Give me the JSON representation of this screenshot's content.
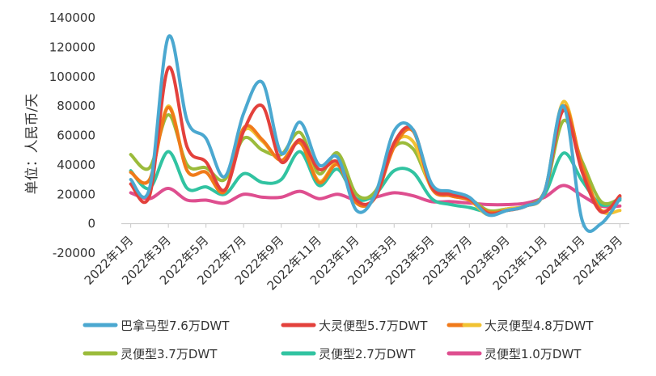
{
  "chart_data": {
    "type": "line",
    "title": "",
    "xlabel": "",
    "ylabel": "单位：人民币/天",
    "ylim": [
      -20000,
      140000
    ],
    "yticks": [
      -20000,
      0,
      20000,
      40000,
      60000,
      80000,
      100000,
      120000,
      140000
    ],
    "ytick_labels": [
      "-20000",
      "0",
      "20000",
      "40000",
      "60000",
      "80000",
      "100000",
      "120000",
      "140000"
    ],
    "x": [
      "2022-01",
      "2022-02",
      "2022-03",
      "2022-04",
      "2022-05",
      "2022-06",
      "2022-07",
      "2022-08",
      "2022-09",
      "2022-10",
      "2022-11",
      "2022-12",
      "2023-01",
      "2023-02",
      "2023-03",
      "2023-04",
      "2023-05",
      "2023-06",
      "2023-07",
      "2023-08",
      "2023-09",
      "2023-10",
      "2023-11",
      "2023-12",
      "2024-01",
      "2024-02",
      "2024-03"
    ],
    "x_tick_labels": [
      "2022年1月",
      "2022年3月",
      "2022年5月",
      "2022年7月",
      "2022年9月",
      "2022年11月",
      "2023年1月",
      "2023年3月",
      "2023年5月",
      "2023年7月",
      "2023年9月",
      "2023年11月",
      "2024年1月",
      "2024年3月"
    ],
    "grid": false,
    "legend_position": "bottom",
    "series": [
      {
        "name": "巴拿马型7.6万DWT",
        "color": "#4BA8D0",
        "values": [
          30000,
          24000,
          127000,
          70000,
          58000,
          32000,
          75000,
          96000,
          48000,
          69000,
          40000,
          45000,
          9000,
          20000,
          63000,
          64000,
          27000,
          22000,
          18000,
          6000,
          9000,
          12000,
          22000,
          80000,
          2000,
          0,
          17000
        ]
      },
      {
        "name": "大灵便型5.7万DWT",
        "color": "#E3413C",
        "values": [
          27000,
          19000,
          106000,
          52000,
          42000,
          23000,
          63000,
          80000,
          42000,
          57000,
          37000,
          42000,
          16000,
          18000,
          55000,
          64000,
          25000,
          20000,
          17000,
          7000,
          9000,
          12000,
          22000,
          77000,
          35000,
          8000,
          19000
        ]
      },
      {
        "name": "大灵便型4.8万DWT",
        "color": "#F07A1A",
        "values": [
          35000,
          30000,
          79000,
          36000,
          35000,
          22000,
          65000,
          57000,
          43000,
          55000,
          28000,
          40000,
          14000,
          18000,
          52000,
          63000,
          24000,
          19000,
          16000,
          8000,
          9000,
          12000,
          22000,
          80000,
          39000,
          9000,
          18000
        ]
      },
      {
        "name": "灵便型4.8万DWT",
        "color": "#F1C232",
        "values": [
          35000,
          30000,
          80000,
          36000,
          35000,
          22000,
          63000,
          56000,
          43000,
          56000,
          29000,
          41000,
          14000,
          18000,
          54000,
          56000,
          24000,
          19000,
          16000,
          6000,
          10000,
          12000,
          22000,
          83000,
          37000,
          9000,
          9000
        ]
      },
      {
        "name": "灵便型3.7万DWT",
        "color": "#9BBB3B",
        "values": [
          47000,
          38000,
          74000,
          40000,
          38000,
          30000,
          58000,
          50000,
          47000,
          62000,
          34000,
          48000,
          20000,
          22000,
          52000,
          51000,
          25000,
          20000,
          17000,
          9000,
          10000,
          12000,
          22000,
          70000,
          42000,
          15000,
          17000
        ]
      },
      {
        "name": "灵便型2.7万DWT",
        "color": "#31C3A1",
        "values": [
          36000,
          24000,
          49000,
          24000,
          25000,
          20000,
          34000,
          28000,
          30000,
          49000,
          26000,
          37000,
          17000,
          20000,
          36000,
          35000,
          17000,
          13000,
          11000,
          8000,
          10000,
          12000,
          20000,
          48000,
          29000,
          13000,
          16000
        ]
      },
      {
        "name": "灵便型1.0万DWT",
        "color": "#DE4E8F",
        "values": [
          21000,
          17000,
          24000,
          16000,
          16000,
          14000,
          20000,
          18000,
          18000,
          22000,
          17000,
          20000,
          16000,
          18000,
          21000,
          19000,
          15000,
          15000,
          14000,
          13000,
          13000,
          14000,
          18000,
          26000,
          19000,
          12000,
          12000
        ]
      }
    ],
    "legend": [
      {
        "label": "巴拿马型7.6万DWT",
        "colors": [
          "#4BA8D0"
        ]
      },
      {
        "label": "大灵便型5.7万DWT",
        "colors": [
          "#E3413C"
        ]
      },
      {
        "label": "大灵便型4.8万DWT",
        "colors": [
          "#F07A1A",
          "#F1C232"
        ]
      },
      {
        "label": "灵便型3.7万DWT",
        "colors": [
          "#9BBB3B"
        ]
      },
      {
        "label": "灵便型2.7万DWT",
        "colors": [
          "#31C3A1"
        ]
      },
      {
        "label": "灵便型1.0万DWT",
        "colors": [
          "#DE4E8F"
        ]
      }
    ]
  }
}
